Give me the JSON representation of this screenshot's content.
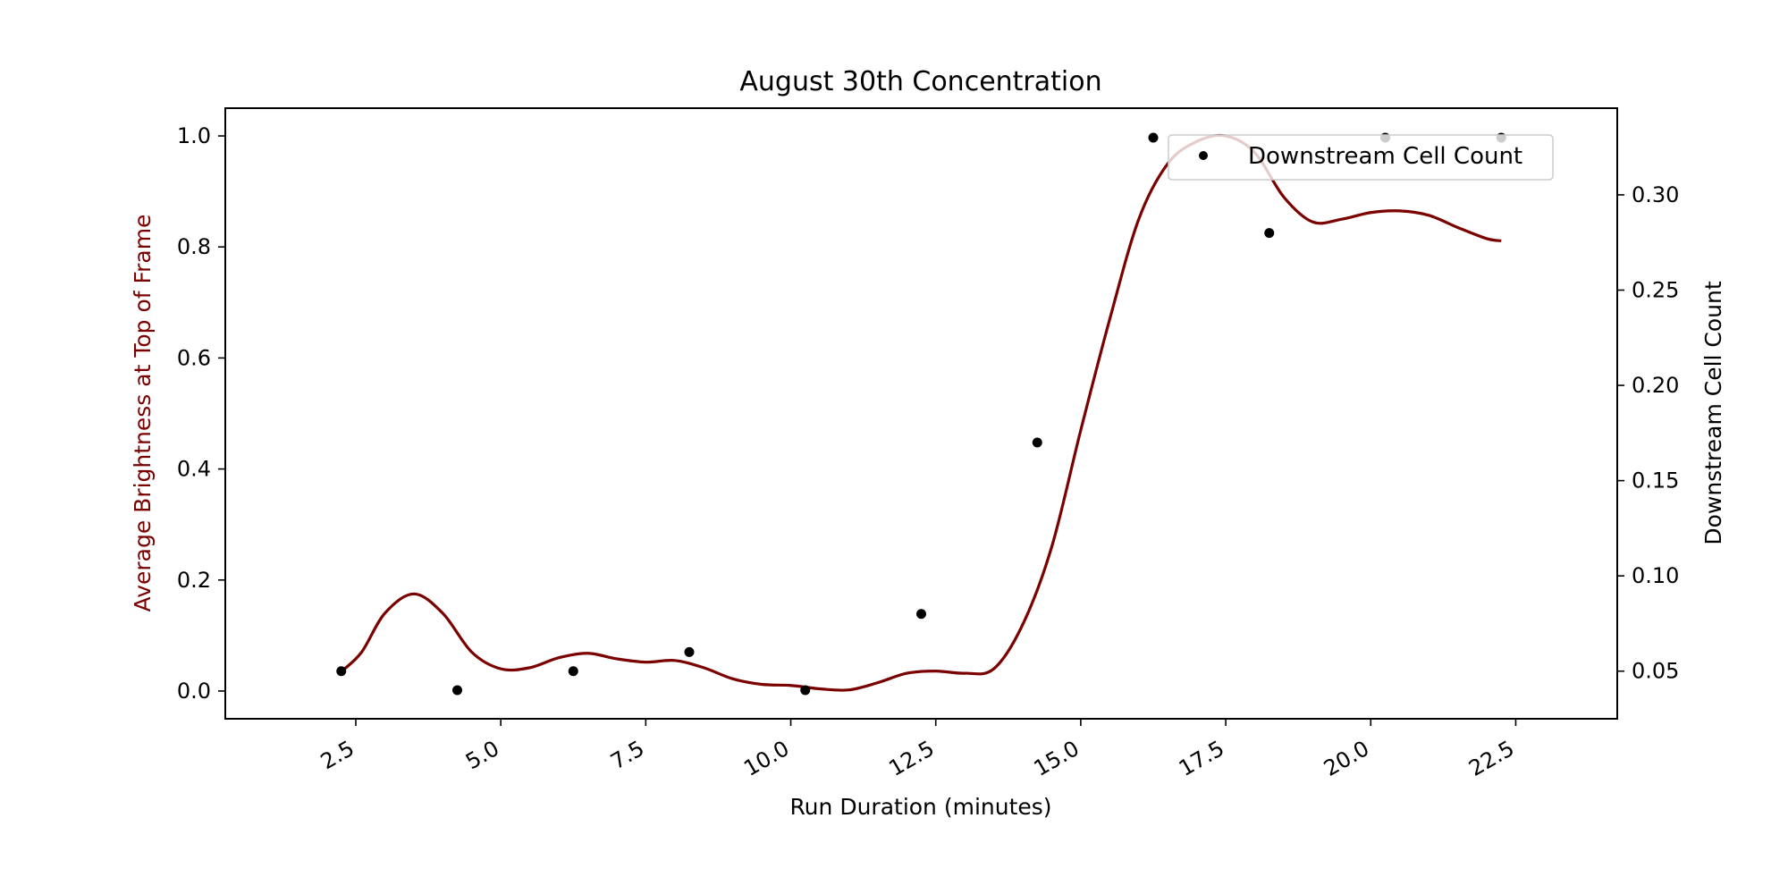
{
  "chart_data": {
    "type": "line",
    "title": "August 30th Concentration",
    "xlabel": "Run Duration (minutes)",
    "ylabel_left": "Average Brightness at Top of Frame",
    "ylabel_right": "Downstream Cell Count",
    "xlim": [
      0.25,
      24.25
    ],
    "ylim_left": [
      -0.05,
      1.05
    ],
    "ylim_right": [
      0.025,
      0.3455
    ],
    "x_ticks": [
      2.5,
      5.0,
      7.5,
      10.0,
      12.5,
      15.0,
      17.5,
      20.0,
      22.5
    ],
    "x_tick_labels": [
      "2.5",
      "5.0",
      "7.5",
      "10.0",
      "12.5",
      "15.0",
      "17.5",
      "20.0",
      "22.5"
    ],
    "y_left_ticks": [
      0.0,
      0.2,
      0.4,
      0.6,
      0.8,
      1.0
    ],
    "y_left_tick_labels": [
      "0.0",
      "0.2",
      "0.4",
      "0.6",
      "0.8",
      "1.0"
    ],
    "y_right_ticks": [
      0.05,
      0.1,
      0.15,
      0.2,
      0.25,
      0.3
    ],
    "y_right_tick_labels": [
      "0.05",
      "0.10",
      "0.15",
      "0.20",
      "0.25",
      "0.30"
    ],
    "legend_position": "top-right",
    "grid": false,
    "series": [
      {
        "kind": "line",
        "axis": "left",
        "color": "#7b0000",
        "x": [
          2.25,
          2.6,
          3.0,
          3.5,
          4.0,
          4.5,
          5.0,
          5.5,
          6.0,
          6.5,
          7.0,
          7.5,
          8.0,
          8.5,
          9.0,
          9.5,
          10.0,
          10.5,
          11.0,
          11.5,
          12.0,
          12.5,
          13.0,
          13.5,
          14.0,
          14.5,
          15.0,
          15.5,
          16.0,
          16.5,
          17.0,
          17.5,
          18.0,
          18.5,
          19.0,
          19.5,
          20.0,
          20.5,
          21.0,
          21.5,
          22.0,
          22.25
        ],
        "y": [
          0.035,
          0.07,
          0.14,
          0.175,
          0.14,
          0.07,
          0.04,
          0.042,
          0.06,
          0.068,
          0.058,
          0.052,
          0.055,
          0.042,
          0.022,
          0.012,
          0.01,
          0.004,
          0.002,
          0.015,
          0.032,
          0.036,
          0.032,
          0.04,
          0.12,
          0.26,
          0.47,
          0.67,
          0.85,
          0.95,
          0.99,
          1.0,
          0.97,
          0.89,
          0.845,
          0.85,
          0.862,
          0.865,
          0.857,
          0.835,
          0.815,
          0.811
        ]
      },
      {
        "kind": "scatter",
        "axis": "right",
        "name": "Downstream Cell Count",
        "color": "#000000",
        "x": [
          2.25,
          4.25,
          6.25,
          8.25,
          10.25,
          12.25,
          14.25,
          16.25,
          18.25,
          20.25,
          22.25
        ],
        "y": [
          0.05,
          0.04,
          0.05,
          0.06,
          0.04,
          0.08,
          0.17,
          0.33,
          0.28,
          0.33,
          0.33
        ]
      }
    ]
  }
}
